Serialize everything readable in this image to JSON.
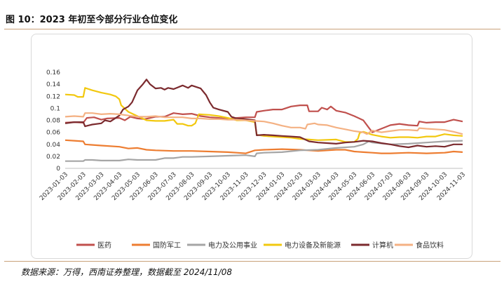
{
  "figure": {
    "title": "图 10：2023 年初至今部分行业仓位变化",
    "source": "数据来源：万得，西南证券整理，数据截至 2024/11/08"
  },
  "chart_data": {
    "type": "line",
    "ylim": [
      0,
      0.16
    ],
    "yticks": [
      0,
      0.02,
      0.04,
      0.06,
      0.08,
      0.1,
      0.12,
      0.14,
      0.16
    ],
    "ytick_labels": [
      "0",
      "0.02",
      "0.04",
      "0.06",
      "0.08",
      "0.1",
      "0.12",
      "0.14",
      "0.16"
    ],
    "xticks": [
      "2023-01-03",
      "2023-02-03",
      "2023-03-03",
      "2023-04-03",
      "2023-05-03",
      "2023-06-03",
      "2023-07-03",
      "2023-08-03",
      "2023-09-03",
      "2023-10-03",
      "2023-11-03",
      "2023-12-03",
      "2024-01-03",
      "2024-02-03",
      "2024-03-03",
      "2024-04-03",
      "2024-05-03",
      "2024-06-03",
      "2024-07-03",
      "2024-08-03",
      "2024-09-03",
      "2024-10-03",
      "2024-11-03"
    ],
    "grid": false,
    "legend_position": "bottom",
    "series": [
      {
        "name": "医药",
        "color": "#c0504d",
        "points": [
          [
            0,
            0.076
          ],
          [
            0.5,
            0.077
          ],
          [
            1,
            0.076
          ],
          [
            1.2,
            0.084
          ],
          [
            1.6,
            0.085
          ],
          [
            2,
            0.081
          ],
          [
            2.3,
            0.083
          ],
          [
            3,
            0.084
          ],
          [
            3.3,
            0.08
          ],
          [
            3.6,
            0.086
          ],
          [
            4,
            0.083
          ],
          [
            4.4,
            0.082
          ],
          [
            5,
            0.086
          ],
          [
            5.5,
            0.086
          ],
          [
            6,
            0.092
          ],
          [
            6.5,
            0.09
          ],
          [
            7,
            0.091
          ],
          [
            7.5,
            0.087
          ],
          [
            8,
            0.085
          ],
          [
            8.5,
            0.084
          ],
          [
            9,
            0.082
          ],
          [
            9.5,
            0.084
          ],
          [
            10,
            0.085
          ],
          [
            10.5,
            0.085
          ],
          [
            10.6,
            0.094
          ],
          [
            11,
            0.096
          ],
          [
            11.5,
            0.098
          ],
          [
            12,
            0.098
          ],
          [
            12.5,
            0.103
          ],
          [
            13,
            0.105
          ],
          [
            13.4,
            0.105
          ],
          [
            13.5,
            0.095
          ],
          [
            14,
            0.095
          ],
          [
            14.2,
            0.101
          ],
          [
            14.5,
            0.098
          ],
          [
            14.7,
            0.103
          ],
          [
            15,
            0.096
          ],
          [
            15.5,
            0.093
          ],
          [
            16,
            0.087
          ],
          [
            16.5,
            0.08
          ],
          [
            16.8,
            0.068
          ],
          [
            17,
            0.06
          ],
          [
            17.5,
            0.066
          ],
          [
            18,
            0.072
          ],
          [
            18.5,
            0.074
          ],
          [
            19,
            0.072
          ],
          [
            19.5,
            0.071
          ],
          [
            19.6,
            0.078
          ],
          [
            20,
            0.076
          ],
          [
            20.5,
            0.077
          ],
          [
            21,
            0.077
          ],
          [
            21.5,
            0.081
          ],
          [
            22,
            0.078
          ]
        ]
      },
      {
        "name": "国防军工",
        "color": "#ed7d31",
        "points": [
          [
            0,
            0.047
          ],
          [
            0.5,
            0.046
          ],
          [
            1,
            0.045
          ],
          [
            1.1,
            0.04
          ],
          [
            2,
            0.038
          ],
          [
            3,
            0.036
          ],
          [
            3.5,
            0.033
          ],
          [
            4,
            0.034
          ],
          [
            4.5,
            0.031
          ],
          [
            5,
            0.03
          ],
          [
            6,
            0.029
          ],
          [
            7,
            0.029
          ],
          [
            8,
            0.028
          ],
          [
            9,
            0.027
          ],
          [
            9.5,
            0.026
          ],
          [
            10,
            0.025
          ],
          [
            10.5,
            0.03
          ],
          [
            11,
            0.031
          ],
          [
            12,
            0.032
          ],
          [
            13,
            0.031
          ],
          [
            14,
            0.029
          ],
          [
            15,
            0.031
          ],
          [
            15.5,
            0.031
          ],
          [
            16,
            0.028
          ],
          [
            16.5,
            0.027
          ],
          [
            17,
            0.026
          ],
          [
            17.5,
            0.025
          ],
          [
            18,
            0.025
          ],
          [
            19,
            0.026
          ],
          [
            20,
            0.025
          ],
          [
            21,
            0.026
          ],
          [
            21.5,
            0.028
          ],
          [
            22,
            0.027
          ]
        ]
      },
      {
        "name": "电力及公用事业",
        "color": "#a5a5a5",
        "points": [
          [
            0,
            0.012
          ],
          [
            1,
            0.012
          ],
          [
            1.1,
            0.014
          ],
          [
            1.5,
            0.014
          ],
          [
            2,
            0.013
          ],
          [
            3,
            0.013
          ],
          [
            3.5,
            0.015
          ],
          [
            4,
            0.014
          ],
          [
            5,
            0.014
          ],
          [
            5.5,
            0.017
          ],
          [
            6,
            0.017
          ],
          [
            6.5,
            0.019
          ],
          [
            7,
            0.019
          ],
          [
            8,
            0.02
          ],
          [
            9,
            0.021
          ],
          [
            10,
            0.022
          ],
          [
            10.5,
            0.02
          ],
          [
            10.6,
            0.025
          ],
          [
            11,
            0.026
          ],
          [
            12,
            0.027
          ],
          [
            13,
            0.03
          ],
          [
            14,
            0.031
          ],
          [
            15,
            0.034
          ],
          [
            16,
            0.036
          ],
          [
            16.5,
            0.04
          ],
          [
            16.8,
            0.045
          ],
          [
            17,
            0.043
          ],
          [
            18,
            0.04
          ],
          [
            19,
            0.041
          ],
          [
            20,
            0.043
          ],
          [
            21,
            0.045
          ],
          [
            22,
            0.046
          ]
        ]
      },
      {
        "name": "电力设备及新能源",
        "color": "#f2c80f",
        "points": [
          [
            0,
            0.123
          ],
          [
            0.5,
            0.122
          ],
          [
            0.7,
            0.119
          ],
          [
            1,
            0.119
          ],
          [
            1.1,
            0.134
          ],
          [
            1.5,
            0.13
          ],
          [
            2,
            0.126
          ],
          [
            2.5,
            0.123
          ],
          [
            2.8,
            0.12
          ],
          [
            3,
            0.115
          ],
          [
            3.1,
            0.105
          ],
          [
            3.5,
            0.094
          ],
          [
            4,
            0.087
          ],
          [
            4.5,
            0.08
          ],
          [
            5,
            0.079
          ],
          [
            5.5,
            0.079
          ],
          [
            6,
            0.081
          ],
          [
            6.2,
            0.074
          ],
          [
            6.5,
            0.074
          ],
          [
            6.8,
            0.071
          ],
          [
            7,
            0.071
          ],
          [
            7.2,
            0.075
          ],
          [
            7.4,
            0.09
          ],
          [
            8,
            0.089
          ],
          [
            8.5,
            0.087
          ],
          [
            9,
            0.084
          ],
          [
            9.5,
            0.08
          ],
          [
            10,
            0.08
          ],
          [
            10.5,
            0.077
          ],
          [
            10.6,
            0.056
          ],
          [
            11,
            0.054
          ],
          [
            12,
            0.052
          ],
          [
            12.5,
            0.051
          ],
          [
            13,
            0.049
          ],
          [
            13.5,
            0.048
          ],
          [
            14,
            0.047
          ],
          [
            15,
            0.048
          ],
          [
            15.5,
            0.044
          ],
          [
            16,
            0.044
          ],
          [
            16.2,
            0.049
          ],
          [
            16.3,
            0.059
          ],
          [
            16.5,
            0.061
          ],
          [
            17,
            0.056
          ],
          [
            17.5,
            0.053
          ],
          [
            18,
            0.051
          ],
          [
            18.5,
            0.052
          ],
          [
            19,
            0.052
          ],
          [
            19.5,
            0.051
          ],
          [
            20,
            0.053
          ],
          [
            20.5,
            0.053
          ],
          [
            21,
            0.057
          ],
          [
            21.5,
            0.055
          ],
          [
            22,
            0.054
          ]
        ]
      },
      {
        "name": "计算机",
        "color": "#7b2a2e",
        "points": [
          [
            0,
            0.075
          ],
          [
            0.5,
            0.077
          ],
          [
            1,
            0.077
          ],
          [
            1.1,
            0.07
          ],
          [
            1.5,
            0.073
          ],
          [
            2,
            0.075
          ],
          [
            2.2,
            0.08
          ],
          [
            2.5,
            0.078
          ],
          [
            3,
            0.088
          ],
          [
            3.2,
            0.098
          ],
          [
            3.5,
            0.103
          ],
          [
            3.7,
            0.11
          ],
          [
            4,
            0.13
          ],
          [
            4.3,
            0.14
          ],
          [
            4.5,
            0.148
          ],
          [
            4.7,
            0.14
          ],
          [
            5,
            0.133
          ],
          [
            5.3,
            0.134
          ],
          [
            5.5,
            0.131
          ],
          [
            5.7,
            0.134
          ],
          [
            6,
            0.132
          ],
          [
            6.5,
            0.138
          ],
          [
            6.8,
            0.134
          ],
          [
            7,
            0.138
          ],
          [
            7.5,
            0.133
          ],
          [
            7.8,
            0.122
          ],
          [
            8,
            0.11
          ],
          [
            8.2,
            0.101
          ],
          [
            8.5,
            0.098
          ],
          [
            9,
            0.094
          ],
          [
            9.2,
            0.086
          ],
          [
            9.5,
            0.083
          ],
          [
            10,
            0.082
          ],
          [
            10.5,
            0.08
          ],
          [
            10.6,
            0.055
          ],
          [
            11,
            0.056
          ],
          [
            11.5,
            0.055
          ],
          [
            12,
            0.054
          ],
          [
            12.5,
            0.053
          ],
          [
            13,
            0.052
          ],
          [
            13.5,
            0.045
          ],
          [
            14,
            0.043
          ],
          [
            14.5,
            0.042
          ],
          [
            15,
            0.041
          ],
          [
            15.5,
            0.043
          ],
          [
            16,
            0.044
          ],
          [
            16.5,
            0.046
          ],
          [
            17,
            0.045
          ],
          [
            17.5,
            0.042
          ],
          [
            18,
            0.04
          ],
          [
            18.5,
            0.037
          ],
          [
            19,
            0.035
          ],
          [
            19.5,
            0.038
          ],
          [
            20,
            0.036
          ],
          [
            20.5,
            0.037
          ],
          [
            21,
            0.036
          ],
          [
            21.5,
            0.04
          ],
          [
            22,
            0.04
          ]
        ]
      },
      {
        "name": "食品饮料",
        "color": "#f4b183",
        "points": [
          [
            0,
            0.086
          ],
          [
            0.5,
            0.087
          ],
          [
            1,
            0.086
          ],
          [
            1.1,
            0.092
          ],
          [
            1.5,
            0.092
          ],
          [
            2,
            0.09
          ],
          [
            2.5,
            0.091
          ],
          [
            3,
            0.09
          ],
          [
            3.5,
            0.088
          ],
          [
            4,
            0.086
          ],
          [
            4.5,
            0.086
          ],
          [
            5,
            0.087
          ],
          [
            5.5,
            0.085
          ],
          [
            6,
            0.085
          ],
          [
            6.5,
            0.085
          ],
          [
            7,
            0.083
          ],
          [
            7.5,
            0.083
          ],
          [
            8,
            0.082
          ],
          [
            8.5,
            0.082
          ],
          [
            9,
            0.081
          ],
          [
            9.5,
            0.081
          ],
          [
            10,
            0.08
          ],
          [
            10.5,
            0.079
          ],
          [
            11,
            0.078
          ],
          [
            11.5,
            0.075
          ],
          [
            12,
            0.071
          ],
          [
            12.5,
            0.068
          ],
          [
            13,
            0.068
          ],
          [
            13.3,
            0.066
          ],
          [
            13.4,
            0.073
          ],
          [
            13.8,
            0.075
          ],
          [
            14,
            0.073
          ],
          [
            14.5,
            0.072
          ],
          [
            15,
            0.068
          ],
          [
            15.5,
            0.065
          ],
          [
            16,
            0.062
          ],
          [
            16.5,
            0.06
          ],
          [
            16.7,
            0.057
          ],
          [
            17,
            0.063
          ],
          [
            17.5,
            0.06
          ],
          [
            18,
            0.062
          ],
          [
            18.5,
            0.064
          ],
          [
            19,
            0.064
          ],
          [
            19.5,
            0.063
          ],
          [
            19.6,
            0.067
          ],
          [
            20,
            0.066
          ],
          [
            20.5,
            0.065
          ],
          [
            21,
            0.064
          ],
          [
            21.5,
            0.061
          ],
          [
            22,
            0.057
          ]
        ]
      }
    ]
  }
}
